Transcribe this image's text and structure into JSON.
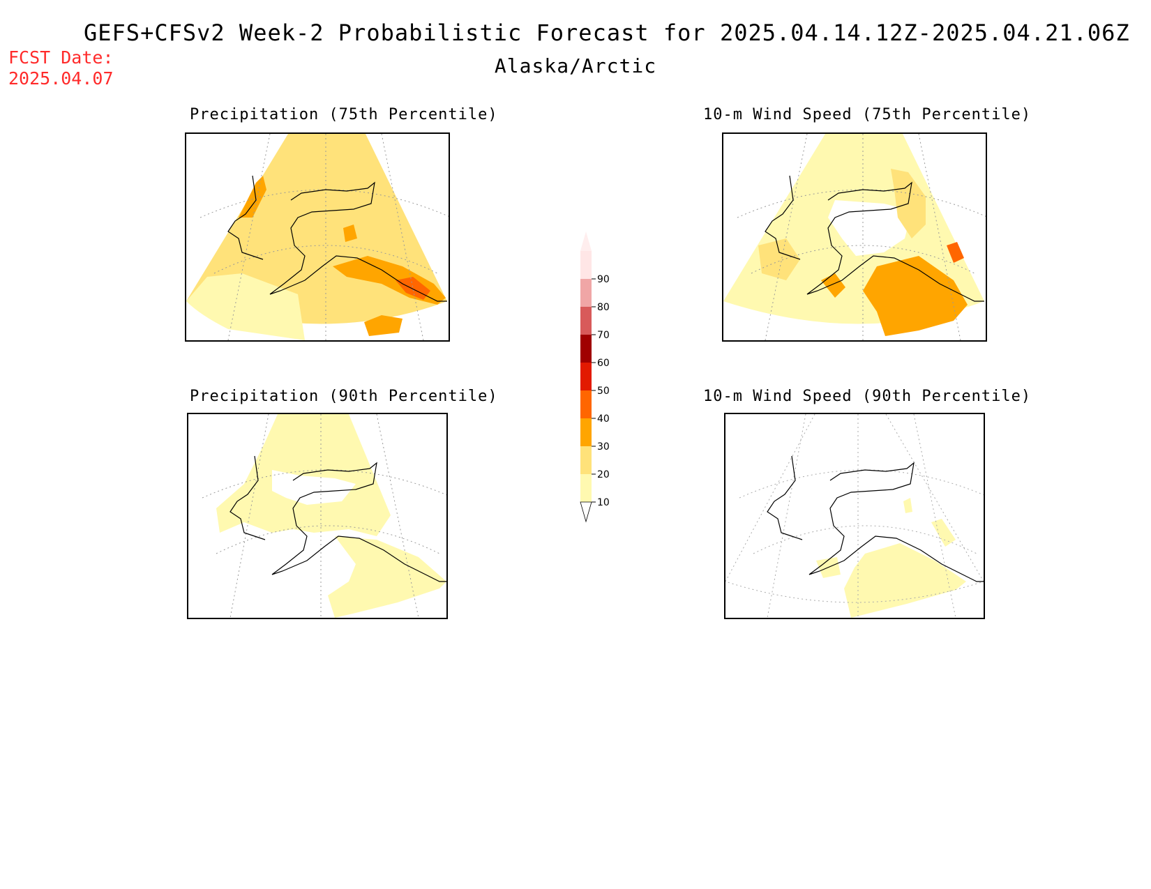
{
  "header": {
    "title": "GEFS+CFSv2 Week-2 Probabilistic Forecast for 2025.04.14.12Z-2025.04.21.06Z",
    "region": "Alaska/Arctic",
    "fcst_label": "FCST Date:",
    "fcst_date": "2025.04.07"
  },
  "panels": [
    {
      "id": "precip75",
      "title": "Precipitation (75th Percentile)",
      "dominant_category": "20-30",
      "max_category": "40-50"
    },
    {
      "id": "wind75",
      "title": "10-m Wind Speed (75th Percentile)",
      "dominant_category": "10-20",
      "max_category": "40-50"
    },
    {
      "id": "precip90",
      "title": "Precipitation (90th Percentile)",
      "dominant_category": "10-20",
      "max_category": "10-20"
    },
    {
      "id": "wind90",
      "title": "10-m Wind Speed (90th Percentile)",
      "dominant_category": "below 10",
      "max_category": "10-20"
    }
  ],
  "colorbar": {
    "levels": [
      "10",
      "20",
      "30",
      "40",
      "50",
      "60",
      "70",
      "80",
      "90"
    ],
    "colors": [
      "#fff9b0",
      "#ffe27a",
      "#ffa500",
      "#ff6600",
      "#e21a00",
      "#a00000",
      "#d85a5a",
      "#f0a6a6",
      "#ffe6e6"
    ]
  },
  "colors": {
    "c10": "#fff9b0",
    "c20": "#ffe27a",
    "c30": "#ffa500",
    "c40": "#ff6600",
    "fcst_text": "#ff2a2a"
  }
}
